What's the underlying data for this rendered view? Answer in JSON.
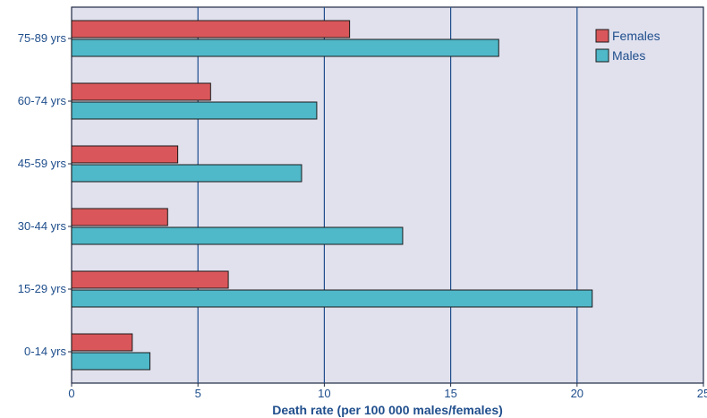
{
  "chart_data": {
    "type": "bar",
    "orientation": "horizontal",
    "categories": [
      "75-89 yrs",
      "60-74 yrs",
      "45-59 yrs",
      "30-44 yrs",
      "15-29 yrs",
      "0-14 yrs"
    ],
    "series": [
      {
        "name": "Females",
        "color": "#d9575a",
        "values": [
          11.0,
          5.5,
          4.2,
          3.8,
          6.2,
          2.4
        ]
      },
      {
        "name": "Males",
        "color": "#4fb8c9",
        "values": [
          16.9,
          9.7,
          9.1,
          13.1,
          20.6,
          3.1
        ]
      }
    ],
    "xlabel": "Death rate (per 100 000 males/females)",
    "xlim": [
      0,
      25
    ],
    "xticks": [
      "0",
      "5",
      "10",
      "15",
      "20",
      "25"
    ],
    "grid": "vertical",
    "legend_position": "top-right",
    "colors": {
      "plot_background": "#e1e1ee",
      "grid": "#1f4e8c",
      "text": "#1f4e8c"
    }
  }
}
